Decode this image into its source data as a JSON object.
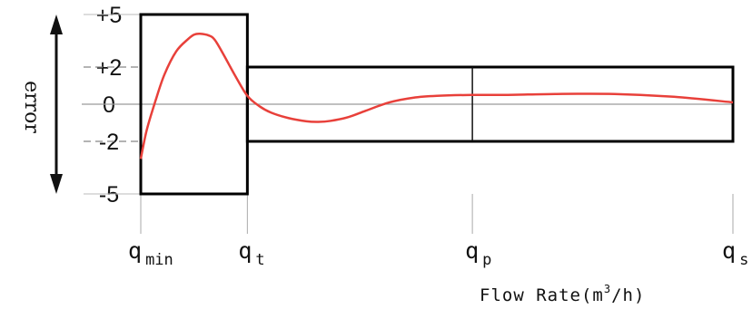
{
  "chart_data": {
    "type": "line",
    "title": "",
    "xlabel": {
      "prefix": "Flow Rate(m",
      "sup": "3",
      "suffix": "/h)"
    },
    "ylabel": "error",
    "y_ticks": [
      "+5",
      "+2",
      "0",
      "-2",
      "-5"
    ],
    "y_tick_values": [
      5,
      2,
      0,
      -2,
      -5
    ],
    "x_ticks": [
      {
        "base": "q",
        "sub": "min",
        "pos": 0
      },
      {
        "base": "q",
        "sub": "t",
        "pos": 0.18
      },
      {
        "base": "q",
        "sub": "p",
        "pos": 0.56
      },
      {
        "base": "q",
        "sub": "s",
        "pos": 1
      }
    ],
    "ylim": [
      -5,
      5
    ],
    "error_envelope": {
      "low_flow_zone": {
        "x_from": 0,
        "x_to": 0.18,
        "upper": 5,
        "lower": -5
      },
      "high_flow_zone": {
        "x_from": 0.18,
        "x_to": 1,
        "upper": 2,
        "lower": -2
      }
    },
    "series": [
      {
        "color": "#e8403a",
        "x": [
          0,
          0.01,
          0.025,
          0.04,
          0.06,
          0.08,
          0.09,
          0.1,
          0.115,
          0.125,
          0.14,
          0.16,
          0.18,
          0.2,
          0.22,
          0.25,
          0.28,
          0.3,
          0.32,
          0.35,
          0.38,
          0.42,
          0.46,
          0.5,
          0.56,
          0.62,
          0.7,
          0.8,
          0.9,
          1
        ],
        "y": [
          -3,
          -1.4,
          0.2,
          1.6,
          2.9,
          3.6,
          3.85,
          3.9,
          3.8,
          3.55,
          2.7,
          1.5,
          0.45,
          -0.1,
          -0.45,
          -0.75,
          -0.92,
          -0.95,
          -0.9,
          -0.7,
          -0.35,
          0.1,
          0.35,
          0.45,
          0.5,
          0.5,
          0.55,
          0.55,
          0.4,
          0.1
        ]
      }
    ],
    "grid": false,
    "legend": "none",
    "colors": {
      "envelope": "#000000",
      "curve": "#e8403a",
      "zero_line": "#9a9a9a"
    }
  }
}
